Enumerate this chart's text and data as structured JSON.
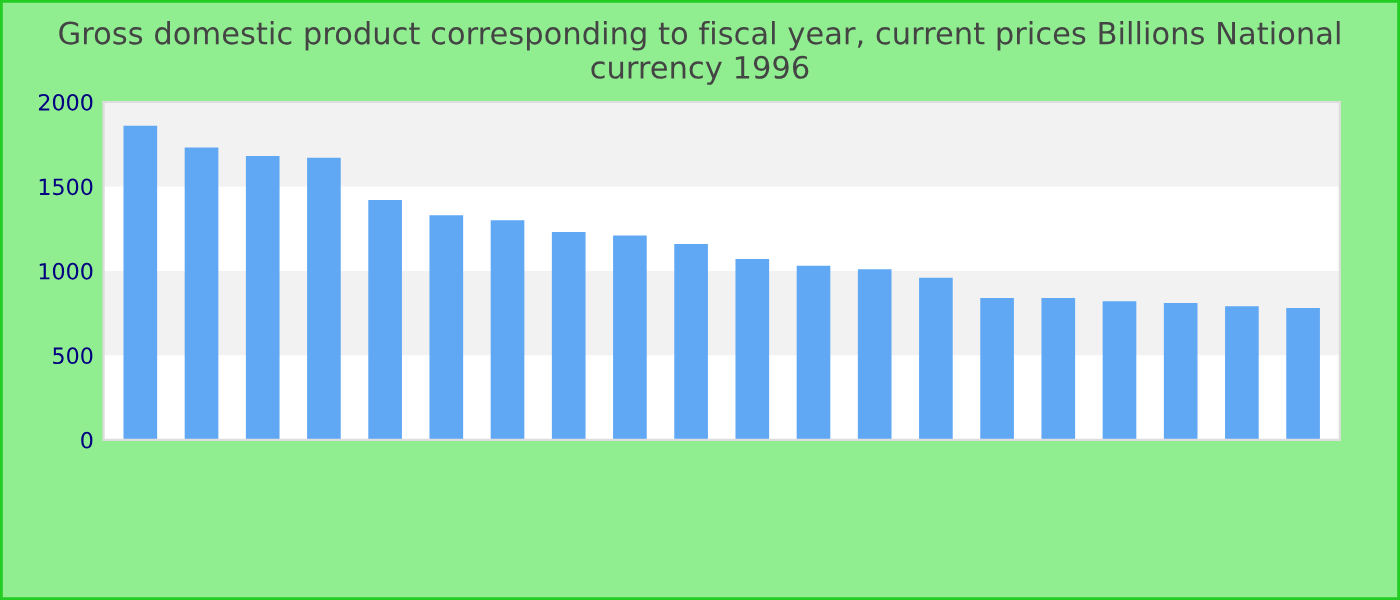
{
  "chart_data": {
    "type": "bar",
    "title": "Gross domestic product corresponding to fiscal year, current prices Billions National currency 1996",
    "categories": [
      null,
      null,
      null,
      null,
      null,
      null,
      null,
      null,
      null,
      null,
      null,
      null,
      null,
      null,
      null,
      null,
      null,
      null,
      null,
      null
    ],
    "values": [
      1860,
      1730,
      1680,
      1670,
      1420,
      1330,
      1300,
      1230,
      1210,
      1160,
      1070,
      1030,
      1010,
      960,
      840,
      840,
      820,
      810,
      790,
      780
    ],
    "color": "#60a8f4",
    "ylim": [
      0,
      2000
    ],
    "yticks": [
      0,
      500,
      1000,
      1500,
      2000
    ]
  }
}
